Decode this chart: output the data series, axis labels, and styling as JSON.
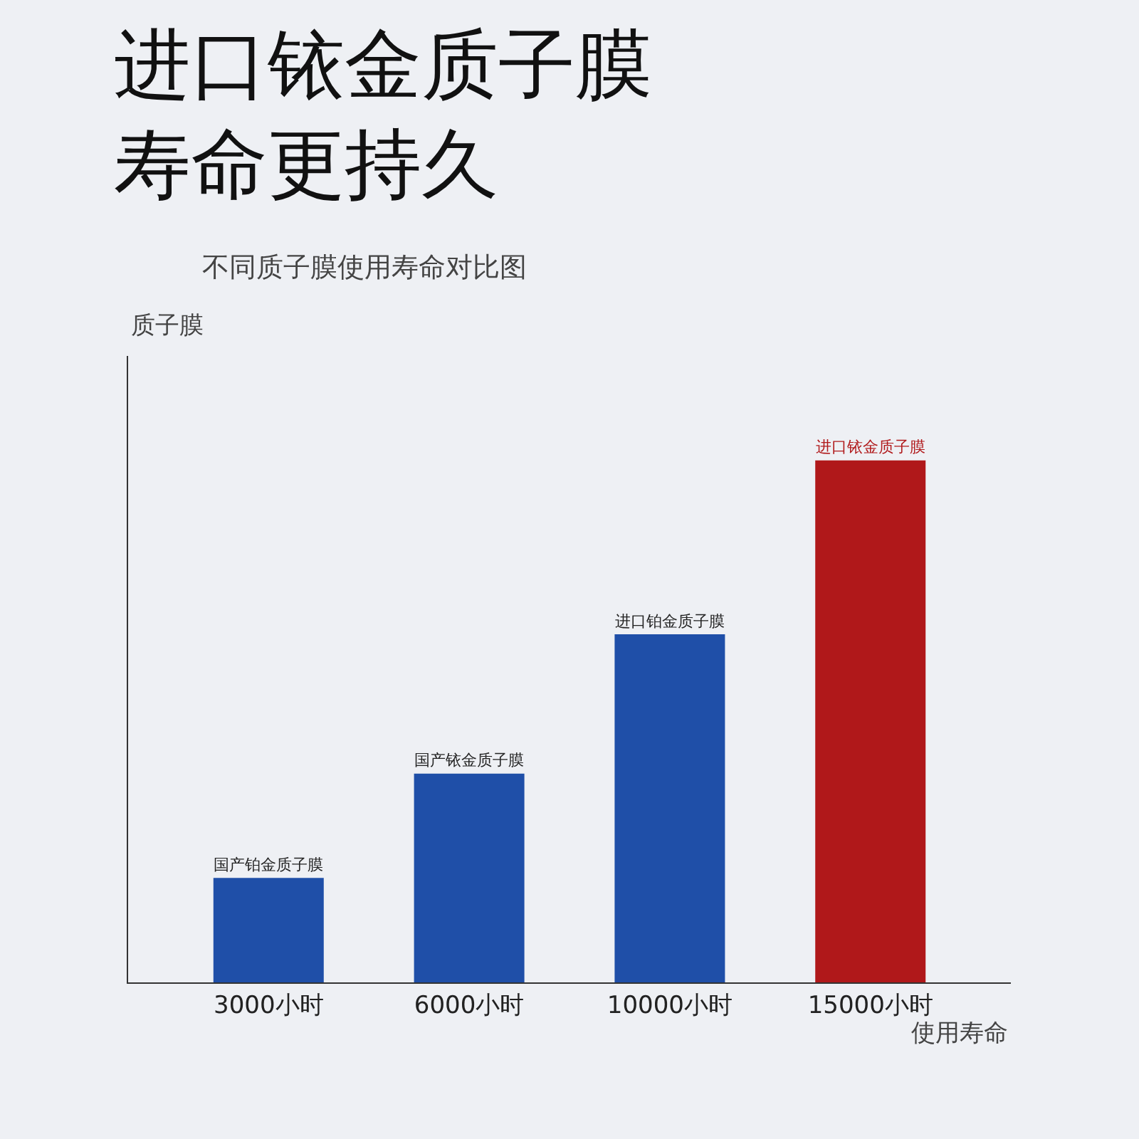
{
  "chart_data": {
    "type": "bar",
    "title": "进口铱金质子膜寿命更持久",
    "subtitle": "不同质子膜使用寿命对比图",
    "xlabel": "使用寿命",
    "ylabel": "质子膜",
    "categories": [
      "国产铂金质子膜",
      "国产铱金质子膜",
      "进口铂金质子膜",
      "进口铱金质子膜"
    ],
    "values": [
      3000,
      6000,
      10000,
      15000
    ],
    "value_labels": [
      "3000小时",
      "6000小时",
      "10000小时",
      "15000小时"
    ],
    "colors": [
      "#1f4fa8",
      "#1f4fa8",
      "#1f4fa8",
      "#b0181a"
    ],
    "grid": false,
    "legend": false
  }
}
